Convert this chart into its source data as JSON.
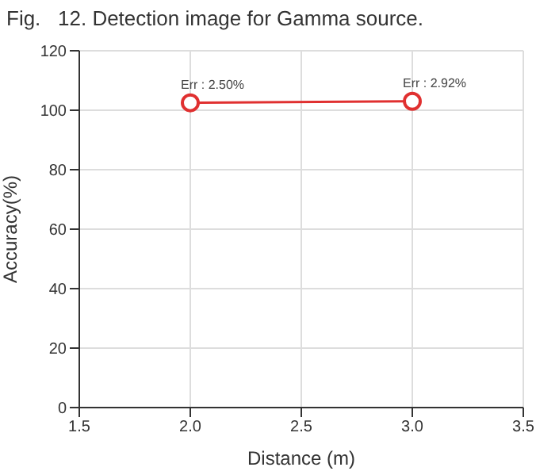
{
  "chart_data": {
    "type": "line",
    "title": "Fig.   12. Detection image for Gamma source.",
    "xlabel": "Distance (m)",
    "ylabel": "Accuracy(%)",
    "x": [
      2.0,
      3.0
    ],
    "series": [
      {
        "color": "#e03030",
        "values": [
          102.5,
          103
        ]
      }
    ],
    "xlim": [
      1.5,
      3.5
    ],
    "xticks": [
      {
        "value": 1.5,
        "label": "1.5"
      },
      {
        "value": 2.0,
        "label": "2.0"
      },
      {
        "value": 2.5,
        "label": "2.5"
      },
      {
        "value": 3.0,
        "label": "3.0"
      },
      {
        "value": 3.5,
        "label": "3.5"
      }
    ],
    "ylim": [
      0,
      120
    ],
    "yticks": [
      0,
      20,
      40,
      60,
      80,
      100,
      120
    ],
    "grid": true,
    "marker": "circle",
    "line_style": "solid",
    "annotations": [
      {
        "text": "Err : 2.50%",
        "x": 2.0,
        "y": 102.5
      },
      {
        "text": "Err : 2.92%",
        "x": 3.0,
        "y": 103
      }
    ]
  }
}
